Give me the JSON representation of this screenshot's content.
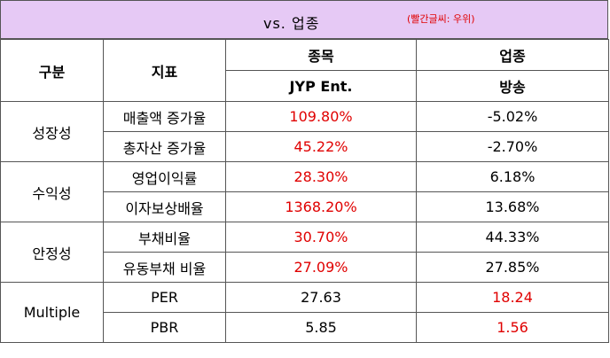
{
  "header": {
    "title": "vs. 업종",
    "note": "(빨간글씨: 우위)"
  },
  "columns": {
    "category": "구분",
    "metric": "지표",
    "stock": "종목",
    "stock_name": "JYP Ent.",
    "industry": "업종",
    "industry_name": "방송"
  },
  "groups": [
    {
      "label": "성장성",
      "rows": [
        {
          "metric": "매출액 증가율",
          "stock": "109.80%",
          "industry": "-5.02%"
        },
        {
          "metric": "총자산 증가율",
          "stock": "45.22%",
          "industry": "-2.70%"
        }
      ]
    },
    {
      "label": "수익성",
      "rows": [
        {
          "metric": "영업이익률",
          "stock": "28.30%",
          "industry": "6.18%"
        },
        {
          "metric": "이자보상배율",
          "stock": "1368.20%",
          "industry": "13.68%"
        }
      ]
    },
    {
      "label": "안정성",
      "rows": [
        {
          "metric": "부채비율",
          "stock": "30.70%",
          "industry": "44.33%"
        },
        {
          "metric": "유동부채 비율",
          "stock": "27.09%",
          "industry": "27.85%"
        }
      ]
    },
    {
      "label": "Multiple",
      "rows": [
        {
          "metric": "PER",
          "stock": "27.63",
          "industry": "18.24"
        },
        {
          "metric": "PBR",
          "stock": "5.85",
          "industry": "1.56"
        }
      ]
    }
  ],
  "colors": {
    "highlight": "#e00000",
    "header_background": "#e6c9f5"
  }
}
